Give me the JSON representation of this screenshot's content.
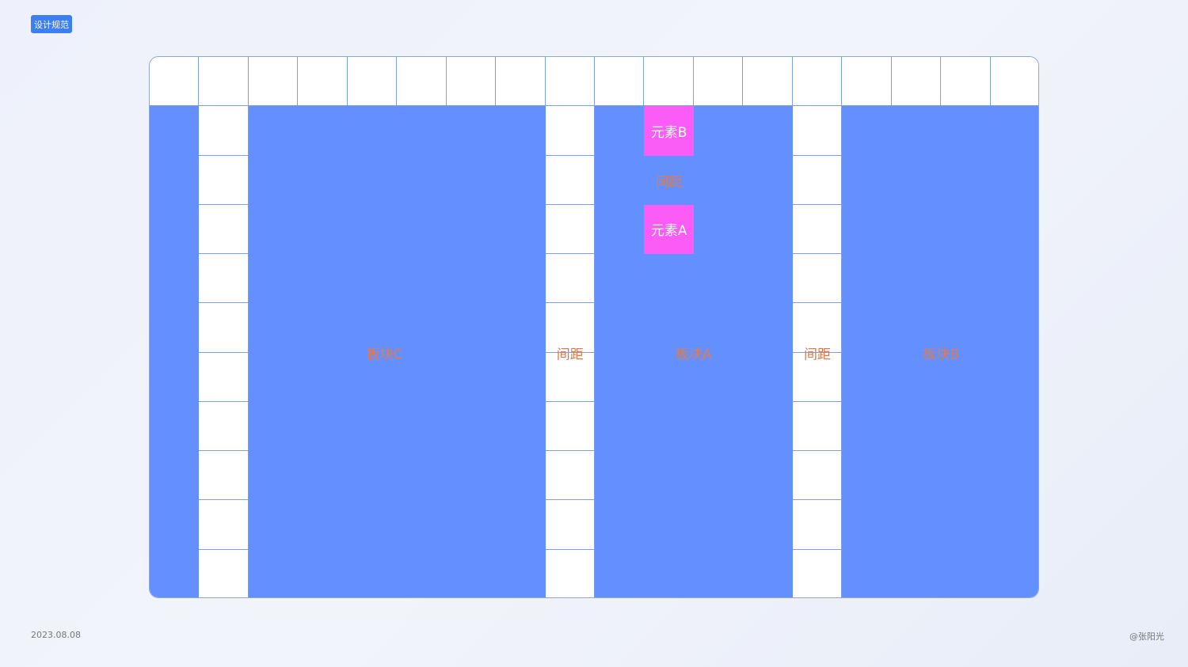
{
  "tag": "设计规范",
  "date": "2023.08.08",
  "author": "@张阳光",
  "colors": {
    "block": "#6490ff",
    "element": "#fb5cf5",
    "label": "#e07a4e",
    "tag": "#3d7ef0"
  },
  "grid": {
    "columns": 18,
    "rows": 11
  },
  "blocks": {
    "c": "板块C",
    "a": "板块A",
    "b": "板块B"
  },
  "gap_label": "间距",
  "elements": {
    "b": "元素B",
    "a": "元素A"
  }
}
